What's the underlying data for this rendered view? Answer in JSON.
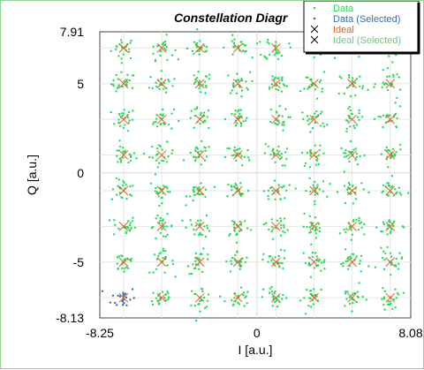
{
  "chart_data": {
    "type": "scatter",
    "title": "Constellation Diagr",
    "xlabel": "I [a.u.]",
    "ylabel": "Q [a.u.]",
    "xlim": [
      -8.25,
      8.08
    ],
    "ylim": [
      -8.13,
      7.91
    ],
    "x_tick_labels": [
      "-8.25",
      "0",
      "8.08"
    ],
    "y_tick_labels": [
      "7.91",
      "5",
      "0",
      "-5",
      "-8.13"
    ],
    "x_ticks": [
      -8.25,
      0,
      8.08
    ],
    "y_ticks": [
      7.91,
      5,
      0,
      -5,
      -8.13
    ],
    "grid": true,
    "ideal_points_x": [
      -7,
      -5,
      -3,
      -1,
      1,
      3,
      5,
      7
    ],
    "ideal_points_y": [
      7,
      5,
      3,
      1,
      -1,
      -3,
      -5,
      -7
    ],
    "selected_cluster": {
      "x": -7,
      "y": -7
    },
    "legend_position": "top-right",
    "series": [
      {
        "name": "Data",
        "color": "#22dd55",
        "marker": "dot"
      },
      {
        "name": "Data (Selected)",
        "color": "#3a6fb0",
        "marker": "dot"
      },
      {
        "name": "Ideal",
        "color": "#d9602a",
        "marker": "x"
      },
      {
        "name": "Ideal (Selected)",
        "color": "#7fbf7f",
        "marker": "x"
      }
    ]
  }
}
